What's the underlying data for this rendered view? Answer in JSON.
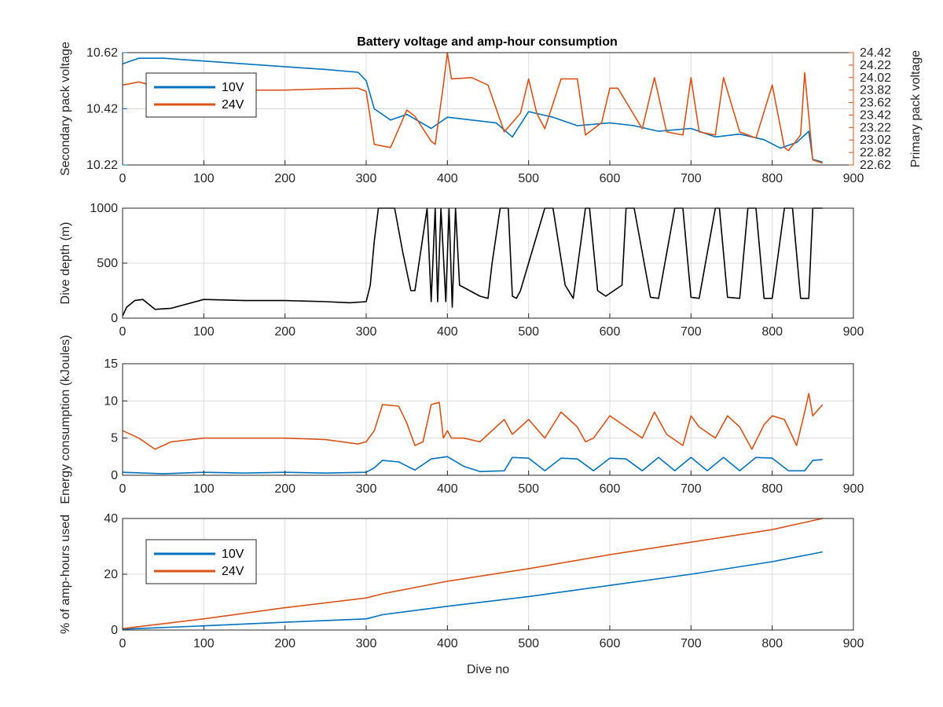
{
  "figure": {
    "title": "Battery voltage and amp-hour consumption"
  },
  "colors": {
    "series_10v": "#0072BD",
    "series_24v": "#D95319",
    "depth": "#000000",
    "axis": "#262626",
    "grid": "#dcdcdc"
  },
  "chart_data": [
    {
      "type": "line",
      "title": "Battery voltage and amp-hour consumption",
      "xlabel": "",
      "ylabel": "Secondary pack voltage",
      "ylabel_right": "Primary pack voltage",
      "xlim": [
        0,
        900
      ],
      "ylim": [
        10.22,
        10.62
      ],
      "ylim_right": [
        22.62,
        24.42
      ],
      "xticks": [
        "0",
        "100",
        "200",
        "300",
        "400",
        "500",
        "600",
        "700",
        "800",
        "900"
      ],
      "yticks_left": [
        "10.22",
        "10.42",
        "10.62"
      ],
      "yticks_right": [
        "22.62",
        "22.82",
        "23.02",
        "23.22",
        "23.42",
        "23.62",
        "23.82",
        "24.02",
        "24.22",
        "24.42"
      ],
      "grid": true,
      "legend": {
        "position": "top-left",
        "entries": [
          "10V",
          "24V"
        ]
      },
      "series": [
        {
          "name": "10V",
          "axis": "left",
          "x": [
            0,
            20,
            50,
            100,
            150,
            200,
            250,
            290,
            300,
            310,
            330,
            350,
            380,
            400,
            430,
            460,
            480,
            500,
            530,
            560,
            600,
            630,
            660,
            700,
            730,
            760,
            790,
            810,
            830,
            845,
            850,
            862
          ],
          "y": [
            10.58,
            10.6,
            10.6,
            10.59,
            10.58,
            10.57,
            10.56,
            10.55,
            10.52,
            10.42,
            10.38,
            10.4,
            10.35,
            10.39,
            10.38,
            10.37,
            10.32,
            10.41,
            10.39,
            10.36,
            10.37,
            10.36,
            10.34,
            10.35,
            10.32,
            10.33,
            10.31,
            10.28,
            10.3,
            10.34,
            10.24,
            10.23
          ]
        },
        {
          "name": "24V",
          "axis": "right",
          "x": [
            0,
            20,
            50,
            100,
            150,
            200,
            250,
            290,
            300,
            310,
            330,
            350,
            360,
            380,
            385,
            395,
            400,
            405,
            430,
            450,
            470,
            490,
            500,
            510,
            520,
            540,
            560,
            570,
            590,
            600,
            610,
            640,
            655,
            670,
            690,
            700,
            710,
            730,
            740,
            760,
            780,
            800,
            815,
            820,
            835,
            840,
            845,
            850,
            862
          ],
          "y": [
            23.9,
            23.95,
            23.85,
            23.8,
            23.82,
            23.82,
            23.84,
            23.85,
            23.8,
            22.95,
            22.9,
            23.5,
            23.4,
            23.0,
            22.95,
            23.9,
            24.42,
            24.0,
            24.02,
            23.9,
            23.15,
            23.45,
            24.0,
            23.45,
            23.2,
            24.0,
            24.0,
            23.1,
            23.3,
            23.85,
            23.85,
            23.2,
            24.02,
            23.15,
            23.1,
            24.02,
            23.15,
            23.1,
            24.02,
            23.15,
            23.05,
            23.9,
            22.9,
            22.85,
            23.1,
            24.1,
            23.4,
            22.7,
            22.65
          ]
        }
      ]
    },
    {
      "type": "line",
      "title": "",
      "xlabel": "",
      "ylabel": "Dive depth (m)",
      "xlim": [
        0,
        900
      ],
      "ylim": [
        1000,
        0
      ],
      "yreversed": true,
      "xticks": [
        "0",
        "100",
        "200",
        "300",
        "400",
        "500",
        "600",
        "700",
        "800",
        "900"
      ],
      "yticks_left": [
        "0",
        "500",
        "1000"
      ],
      "grid": true,
      "series": [
        {
          "name": "",
          "x": [
            0,
            5,
            15,
            25,
            40,
            60,
            100,
            150,
            200,
            250,
            280,
            300,
            305,
            310,
            315,
            335,
            345,
            355,
            360,
            375,
            380,
            385,
            388,
            392,
            398,
            402,
            406,
            410,
            415,
            440,
            450,
            455,
            465,
            475,
            480,
            485,
            490,
            520,
            530,
            545,
            555,
            570,
            575,
            585,
            595,
            615,
            620,
            630,
            650,
            660,
            680,
            690,
            700,
            710,
            730,
            735,
            745,
            760,
            770,
            780,
            790,
            800,
            815,
            825,
            835,
            845,
            850,
            855,
            862
          ],
          "y": [
            20,
            100,
            160,
            170,
            80,
            90,
            170,
            160,
            160,
            150,
            140,
            150,
            300,
            700,
            1000,
            1000,
            600,
            250,
            250,
            1000,
            150,
            1000,
            150,
            1000,
            150,
            1000,
            100,
            1000,
            300,
            200,
            180,
            500,
            1000,
            1000,
            200,
            180,
            250,
            1000,
            1000,
            300,
            180,
            1000,
            1000,
            250,
            200,
            300,
            1000,
            1000,
            190,
            180,
            1000,
            1000,
            190,
            180,
            1000,
            1000,
            190,
            180,
            1000,
            1000,
            180,
            180,
            1000,
            1000,
            180,
            180,
            1000,
            1000,
            1000
          ]
        }
      ]
    },
    {
      "type": "line",
      "title": "",
      "xlabel": "",
      "ylabel": "Energy consumption (kJoules)",
      "xlim": [
        0,
        900
      ],
      "ylim": [
        0,
        15
      ],
      "xticks": [
        "0",
        "100",
        "200",
        "300",
        "400",
        "500",
        "600",
        "700",
        "800",
        "900"
      ],
      "yticks_left": [
        "0",
        "5",
        "10",
        "15"
      ],
      "grid": true,
      "series": [
        {
          "name": "10V",
          "x": [
            0,
            50,
            100,
            150,
            200,
            250,
            300,
            310,
            320,
            340,
            360,
            380,
            400,
            420,
            440,
            470,
            480,
            500,
            520,
            540,
            560,
            580,
            600,
            620,
            640,
            660,
            680,
            700,
            720,
            740,
            760,
            780,
            800,
            820,
            840,
            850,
            862
          ],
          "y": [
            0.4,
            0.2,
            0.4,
            0.3,
            0.4,
            0.3,
            0.4,
            1,
            2,
            1.8,
            0.7,
            2.2,
            2.5,
            1.2,
            0.5,
            0.6,
            2.4,
            2.3,
            0.6,
            2.3,
            2.2,
            0.6,
            2.3,
            2.2,
            0.6,
            2.4,
            0.6,
            2.4,
            0.6,
            2.4,
            0.6,
            2.4,
            2.3,
            0.6,
            0.6,
            2.0,
            2.1
          ]
        },
        {
          "name": "24V",
          "x": [
            0,
            20,
            40,
            60,
            100,
            150,
            200,
            250,
            290,
            300,
            310,
            320,
            340,
            350,
            360,
            370,
            380,
            390,
            395,
            400,
            405,
            420,
            440,
            460,
            470,
            480,
            500,
            520,
            540,
            560,
            570,
            580,
            600,
            620,
            640,
            655,
            670,
            690,
            700,
            710,
            730,
            745,
            760,
            775,
            790,
            800,
            815,
            830,
            840,
            845,
            850,
            862
          ],
          "y": [
            6,
            5,
            3.5,
            4.5,
            5,
            5,
            5,
            4.8,
            4.2,
            4.5,
            6,
            9.5,
            9.3,
            7,
            4,
            4.5,
            9.5,
            9.8,
            5,
            6,
            5,
            5,
            4.5,
            6.5,
            7.5,
            5.5,
            7.5,
            5,
            8.5,
            6.5,
            4.5,
            5,
            8,
            6.5,
            5,
            8.5,
            5.5,
            4,
            8,
            6.5,
            5,
            8,
            6.5,
            3.5,
            6.8,
            8,
            7.5,
            4,
            8.5,
            11,
            8,
            9.5
          ]
        }
      ]
    },
    {
      "type": "line",
      "title": "",
      "xlabel": "Dive no",
      "ylabel": "% of amp-hours used",
      "xlim": [
        0,
        900
      ],
      "ylim": [
        0,
        40
      ],
      "xticks": [
        "0",
        "100",
        "200",
        "300",
        "400",
        "500",
        "600",
        "700",
        "800",
        "900"
      ],
      "yticks_left": [
        "0",
        "20",
        "40"
      ],
      "grid": true,
      "legend": {
        "position": "left",
        "entries": [
          "10V",
          "24V"
        ]
      },
      "series": [
        {
          "name": "10V",
          "x": [
            0,
            100,
            200,
            300,
            320,
            400,
            500,
            600,
            700,
            800,
            862
          ],
          "y": [
            0.3,
            1.5,
            2.8,
            4,
            5.5,
            8.5,
            12,
            16,
            20,
            24.5,
            28
          ]
        },
        {
          "name": "24V",
          "x": [
            0,
            100,
            200,
            300,
            320,
            400,
            500,
            600,
            700,
            800,
            862
          ],
          "y": [
            0.5,
            4,
            8,
            11.5,
            13,
            17.5,
            22,
            27,
            31.5,
            36,
            40
          ]
        }
      ]
    }
  ]
}
